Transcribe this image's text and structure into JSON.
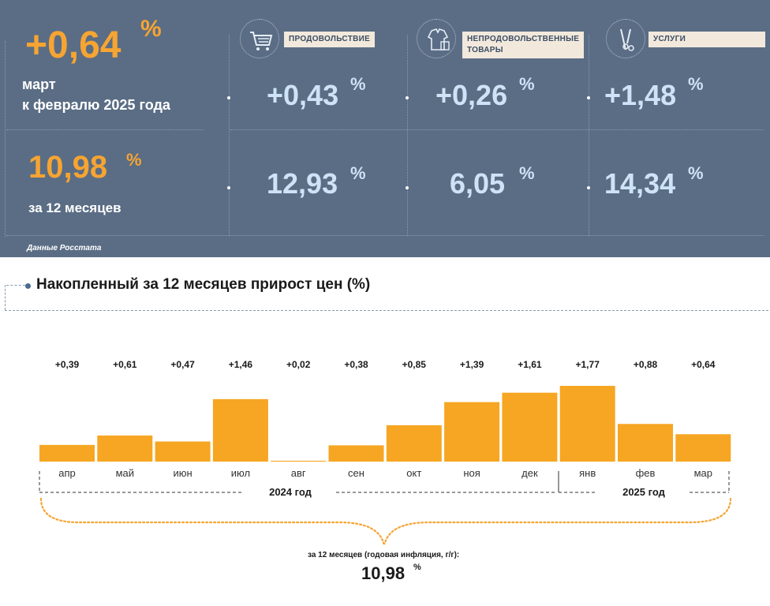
{
  "summary": {
    "monthly": {
      "value": "+0,64",
      "pct": "%",
      "line1": "март",
      "line2": "к февралю 2025 года"
    },
    "annual": {
      "value": "10,98",
      "pct": "%",
      "label": "за 12 месяцев"
    },
    "source": "Данные Росстата"
  },
  "categories": [
    {
      "icon": "shopping-cart-icon",
      "label_lines": [
        "ПРОДОВОЛЬСТВИЕ"
      ],
      "monthly": "+0,43",
      "annual": "12,93",
      "pct": "%"
    },
    {
      "icon": "clothing-icon",
      "label_lines": [
        "НЕПРОДОВОЛЬСТВЕННЫЕ",
        "ТОВАРЫ"
      ],
      "monthly": "+0,26",
      "annual": "6,05",
      "pct": "%"
    },
    {
      "icon": "scissors-tools-icon",
      "label_lines": [
        "УСЛУГИ"
      ],
      "monthly": "+1,48",
      "annual": "14,34",
      "pct": "%"
    }
  ],
  "colors": {
    "panel_bg": "#5a6d85",
    "accent_orange": "#f6a432",
    "light_blue_text": "#cfe3f7",
    "bar": "#f6a623"
  },
  "chart_data": {
    "type": "bar",
    "title": "Накопленный за 12 месяцев прирост цен (%)",
    "categories": [
      "апр",
      "май",
      "июн",
      "июл",
      "авг",
      "сен",
      "окт",
      "ноя",
      "дек",
      "янв",
      "фев",
      "мар"
    ],
    "values": [
      0.39,
      0.61,
      0.47,
      1.46,
      0.02,
      0.38,
      0.85,
      1.39,
      1.61,
      1.77,
      0.88,
      0.64
    ],
    "value_labels": [
      "+0,39",
      "+0,61",
      "+0,47",
      "+1,46",
      "+0,02",
      "+0,38",
      "+0,85",
      "+1,39",
      "+1,61",
      "+1,77",
      "+0,88",
      "+0,64"
    ],
    "year_groups": [
      {
        "label": "2024 год",
        "from": "апр",
        "to": "дек"
      },
      {
        "label": "2025 год",
        "from": "янв",
        "to": "мар"
      }
    ],
    "ylim": [
      0,
      1.77
    ],
    "grid": false,
    "legend": "none",
    "annual_caption": "за 12 месяцев (годовая инфляция, г/г):",
    "annual_value": "10,98",
    "annual_pct": "%"
  }
}
